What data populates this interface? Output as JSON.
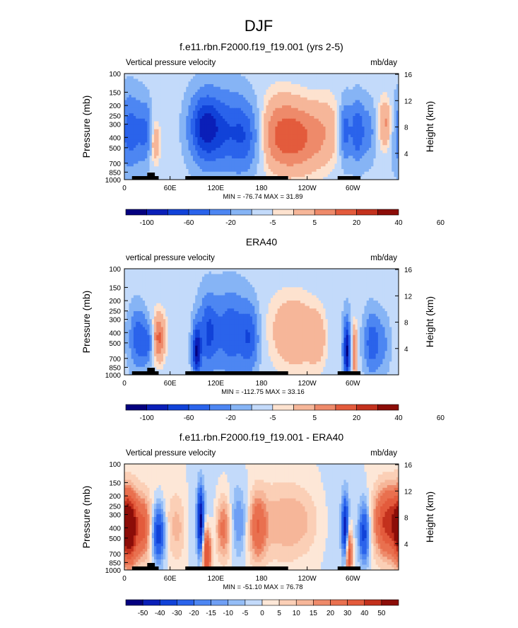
{
  "figure": {
    "title": "DJF"
  },
  "chart_data": [
    {
      "type": "heatmap",
      "title": "f.e11.rbn.F2000.f19_f19.001 (yrs 2-5)",
      "left_label": "Vertical pressure velocity",
      "right_label": "mb/day",
      "ylabel": "Pressure (mb)",
      "y2label": "Height (km)",
      "x_ticks": [
        "0",
        "60E",
        "120E",
        "180",
        "120W",
        "60W"
      ],
      "y_ticks": [
        "100",
        "150",
        "200",
        "250",
        "300",
        "400",
        "500",
        "700",
        "850",
        "1000"
      ],
      "y2_ticks": [
        "16",
        "12",
        "8",
        "4"
      ],
      "stats": "MIN = -76.74   MAX =  31.89",
      "colorbar_labels": [
        "-100",
        "-60",
        "-20",
        "-5",
        "5",
        "20",
        "40",
        "60"
      ],
      "features": [
        {
          "lon": 8,
          "p": 350,
          "value": -60
        },
        {
          "lon": 40,
          "p": 400,
          "value": 20
        },
        {
          "lon": 105,
          "p": 300,
          "value": -76.74
        },
        {
          "lon": 130,
          "p": 350,
          "value": -60
        },
        {
          "lon": 230,
          "p": 400,
          "value": 31.89
        },
        {
          "lon": 300,
          "p": 350,
          "value": -60
        },
        {
          "lon": 345,
          "p": 300,
          "value": 20
        }
      ]
    },
    {
      "type": "heatmap",
      "title": "ERA40",
      "left_label": "vertical pressure velocity",
      "right_label": "mb/day",
      "ylabel": "Pressure (mb)",
      "y2label": "Height (km)",
      "x_ticks": [
        "0",
        "60E",
        "120E",
        "180",
        "120W",
        "60W"
      ],
      "y_ticks": [
        "100",
        "150",
        "200",
        "250",
        "300",
        "400",
        "500",
        "700",
        "850",
        "1000"
      ],
      "y2_ticks": [
        "16",
        "12",
        "8",
        "4"
      ],
      "stats": "MIN = -112.75   MAX =  33.16",
      "colorbar_labels": [
        "-100",
        "-60",
        "-20",
        "-5",
        "5",
        "20",
        "40",
        "60"
      ],
      "features": [
        {
          "lon": 20,
          "p": 450,
          "value": -60
        },
        {
          "lon": 45,
          "p": 450,
          "value": 33.16
        },
        {
          "lon": 95,
          "p": 600,
          "value": -100
        },
        {
          "lon": 140,
          "p": 400,
          "value": -60
        },
        {
          "lon": 225,
          "p": 400,
          "value": 20
        },
        {
          "lon": 295,
          "p": 600,
          "value": -112.75
        },
        {
          "lon": 330,
          "p": 500,
          "value": -60
        }
      ]
    },
    {
      "type": "heatmap",
      "title": "f.e11.rbn.F2000.f19_f19.001 - ERA40",
      "left_label": "Vertical pressure velocity",
      "right_label": "mb/day",
      "ylabel": "Pressure (mb)",
      "y2label": "Height (km)",
      "x_ticks": [
        "0",
        "60E",
        "120E",
        "180",
        "120W",
        "60W"
      ],
      "y_ticks": [
        "100",
        "150",
        "200",
        "250",
        "300",
        "400",
        "500",
        "700",
        "850",
        "1000"
      ],
      "y2_ticks": [
        "16",
        "12",
        "8",
        "4"
      ],
      "stats": "MIN = -51.10   MAX =  76.78",
      "colorbar_labels": [
        "-50",
        "-40",
        "-30",
        "-20",
        "-15",
        "-10",
        "-5",
        "0",
        "5",
        "10",
        "15",
        "20",
        "30",
        "40",
        "50"
      ],
      "features": [
        {
          "lon": 8,
          "p": 400,
          "value": 76.78
        },
        {
          "lon": 45,
          "p": 450,
          "value": -40
        },
        {
          "lon": 100,
          "p": 350,
          "value": -51.1
        },
        {
          "lon": 140,
          "p": 400,
          "value": 30
        },
        {
          "lon": 230,
          "p": 350,
          "value": 15
        },
        {
          "lon": 295,
          "p": 400,
          "value": -40
        },
        {
          "lon": 345,
          "p": 350,
          "value": 40
        }
      ]
    }
  ],
  "colors": {
    "scale12": [
      "#04007f",
      "#0a1fb8",
      "#1142d8",
      "#2a63eb",
      "#4d86f2",
      "#86b4f5",
      "#c3dafa",
      "#fde2cf",
      "#f6b699",
      "#ee8a6a",
      "#e35b3c",
      "#c3311d",
      "#8c0d08"
    ],
    "scale16": [
      "#04007f",
      "#0a1fb8",
      "#1142d8",
      "#2a63eb",
      "#4d86f2",
      "#6f9ff4",
      "#94bdf6",
      "#c3dafa",
      "#fde7d7",
      "#fbcfb6",
      "#f6b699",
      "#ee8a6a",
      "#e9704f",
      "#e35b3c",
      "#c3311d",
      "#8c0d08"
    ],
    "land": "#000000"
  }
}
